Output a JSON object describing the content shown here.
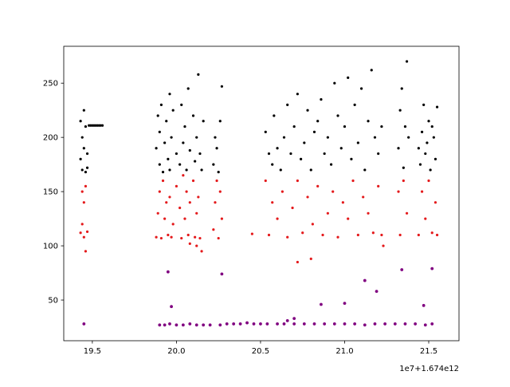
{
  "chart_data": {
    "type": "scatter",
    "title": "",
    "xlabel": "",
    "ylabel": "",
    "x_offset_text": "1e7+1.674e12",
    "xlim": [
      19.33,
      21.68
    ],
    "ylim": [
      12.5,
      284
    ],
    "x_ticks": [
      19.5,
      20.0,
      20.5,
      21.0,
      21.5
    ],
    "x_tick_labels": [
      "19.5",
      "20.0",
      "20.5",
      "21.0",
      "21.5"
    ],
    "y_ticks": [
      50,
      100,
      150,
      200,
      250
    ],
    "y_tick_labels": [
      "50",
      "100",
      "150",
      "200",
      "250"
    ],
    "grid": false,
    "legend": "none",
    "series": [
      {
        "color": "#000000",
        "x": [
          19.43,
          19.43,
          19.44,
          19.44,
          19.45,
          19.45,
          19.46,
          19.46,
          19.47,
          19.47,
          19.48,
          19.49,
          19.5,
          19.51,
          19.52,
          19.53,
          19.54,
          19.55,
          19.56,
          19.88,
          19.89,
          19.9,
          19.9,
          19.91,
          19.92,
          19.93,
          19.94,
          19.95,
          19.96,
          19.96,
          19.97,
          19.98,
          20.0,
          20.02,
          20.03,
          20.04,
          20.05,
          20.06,
          20.07,
          20.08,
          20.1,
          20.11,
          20.12,
          20.13,
          20.14,
          20.15,
          20.16,
          20.22,
          20.23,
          20.24,
          20.25,
          20.26,
          20.27,
          20.53,
          20.55,
          20.57,
          20.58,
          20.6,
          20.62,
          20.64,
          20.66,
          20.68,
          20.7,
          20.72,
          20.74,
          20.76,
          20.78,
          20.8,
          20.82,
          20.84,
          20.86,
          20.88,
          20.9,
          20.92,
          20.94,
          20.96,
          20.98,
          21.0,
          21.02,
          21.04,
          21.06,
          21.08,
          21.1,
          21.12,
          21.14,
          21.16,
          21.18,
          21.2,
          21.22,
          21.32,
          21.33,
          21.34,
          21.35,
          21.36,
          21.37,
          21.38,
          21.44,
          21.45,
          21.46,
          21.47,
          21.48,
          21.49,
          21.5,
          21.51,
          21.52,
          21.53,
          21.54,
          21.55
        ],
        "y": [
          180,
          215,
          170,
          200,
          225,
          190,
          168,
          210,
          185,
          172,
          211,
          211,
          211,
          211,
          211,
          211,
          211,
          211,
          211,
          190,
          220,
          175,
          205,
          230,
          168,
          195,
          215,
          180,
          240,
          170,
          200,
          225,
          185,
          175,
          230,
          195,
          210,
          170,
          245,
          188,
          220,
          178,
          200,
          258,
          185,
          170,
          215,
          175,
          200,
          190,
          168,
          215,
          247,
          205,
          185,
          175,
          220,
          190,
          170,
          200,
          230,
          185,
          210,
          240,
          180,
          195,
          225,
          170,
          205,
          215,
          235,
          185,
          200,
          175,
          250,
          220,
          190,
          210,
          255,
          180,
          230,
          195,
          245,
          170,
          215,
          262,
          200,
          185,
          210,
          190,
          225,
          245,
          172,
          210,
          270,
          200,
          190,
          175,
          205,
          230,
          185,
          195,
          215,
          170,
          210,
          200,
          180,
          228
        ],
        "marker_size": 1.6
      },
      {
        "color": "#e41a1c",
        "x": [
          19.43,
          19.44,
          19.44,
          19.45,
          19.45,
          19.46,
          19.46,
          19.47,
          19.88,
          19.89,
          19.9,
          19.91,
          19.92,
          19.93,
          19.94,
          19.95,
          19.96,
          19.97,
          19.98,
          20.0,
          20.02,
          20.03,
          20.04,
          20.05,
          20.06,
          20.07,
          20.08,
          20.1,
          20.11,
          20.12,
          20.13,
          20.14,
          20.15,
          20.22,
          20.23,
          20.24,
          20.25,
          20.26,
          20.27,
          20.53,
          20.55,
          20.57,
          20.6,
          20.63,
          20.66,
          20.69,
          20.72,
          20.75,
          20.78,
          20.81,
          20.84,
          20.87,
          20.9,
          20.93,
          20.96,
          20.99,
          21.02,
          21.05,
          21.08,
          21.11,
          21.14,
          21.17,
          21.2,
          21.22,
          21.23,
          21.32,
          21.33,
          21.35,
          21.37,
          21.44,
          21.46,
          21.48,
          21.5,
          21.52,
          21.54,
          21.55,
          20.45,
          20.72,
          20.8,
          20.08,
          20.12
        ],
        "y": [
          112,
          150,
          120,
          140,
          108,
          155,
          95,
          113,
          108,
          130,
          150,
          107,
          160,
          125,
          140,
          110,
          145,
          108,
          120,
          155,
          135,
          107,
          165,
          125,
          150,
          110,
          140,
          160,
          108,
          130,
          145,
          107,
          95,
          115,
          140,
          160,
          107,
          150,
          125,
          160,
          110,
          140,
          125,
          150,
          108,
          135,
          160,
          112,
          145,
          120,
          155,
          110,
          130,
          150,
          108,
          140,
          125,
          160,
          110,
          145,
          130,
          112,
          155,
          110,
          100,
          150,
          110,
          160,
          130,
          110,
          150,
          125,
          160,
          112,
          140,
          110,
          111,
          85,
          88,
          102,
          100
        ],
        "marker_size": 1.6
      },
      {
        "color": "#800080",
        "x": [
          19.45,
          19.9,
          19.93,
          19.96,
          20.0,
          20.04,
          20.08,
          20.12,
          20.16,
          20.2,
          20.26,
          20.3,
          20.34,
          20.38,
          20.42,
          20.46,
          20.5,
          20.54,
          20.6,
          20.64,
          20.7,
          20.76,
          20.82,
          20.88,
          20.94,
          21.0,
          21.06,
          21.12,
          21.18,
          21.24,
          21.3,
          21.36,
          21.42,
          21.48,
          21.52,
          19.95,
          19.97,
          20.27,
          20.66,
          20.7,
          20.86,
          21.0,
          21.12,
          21.19,
          21.34,
          21.47,
          21.52
        ],
        "y": [
          28,
          27,
          27,
          28,
          27,
          27,
          28,
          27,
          27,
          27,
          27,
          28,
          28,
          28,
          29,
          28,
          28,
          28,
          28,
          28,
          28,
          28,
          28,
          28,
          28,
          28,
          28,
          27,
          28,
          28,
          28,
          28,
          28,
          27,
          28,
          76,
          44,
          74,
          31,
          33,
          46,
          47,
          68,
          58,
          78,
          45,
          79
        ],
        "marker_size": 1.9
      }
    ]
  }
}
